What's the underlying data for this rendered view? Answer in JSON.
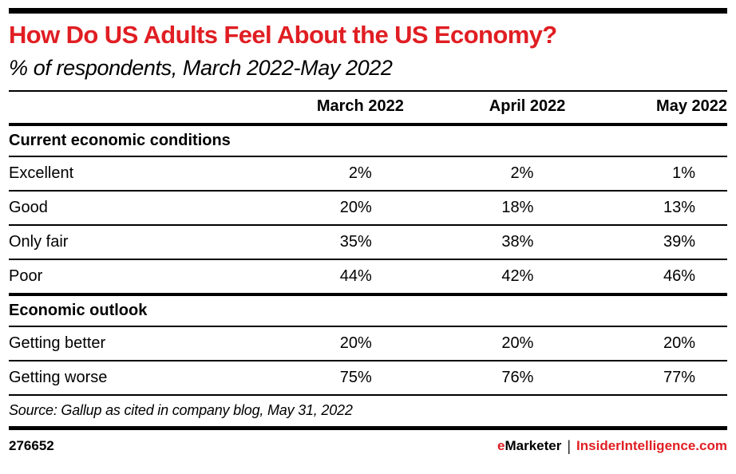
{
  "header": {
    "title": "How Do US Adults Feel About the US Economy?",
    "subtitle": "% of respondents, March 2022-May 2022"
  },
  "table": {
    "columns": [
      "March 2022",
      "April 2022",
      "May 2022"
    ],
    "sections": [
      {
        "label": "Current economic conditions",
        "rows": [
          {
            "label": "Excellent",
            "values": [
              "2%",
              "2%",
              "1%"
            ]
          },
          {
            "label": "Good",
            "values": [
              "20%",
              "18%",
              "13%"
            ]
          },
          {
            "label": "Only fair",
            "values": [
              "35%",
              "38%",
              "39%"
            ]
          },
          {
            "label": "Poor",
            "values": [
              "44%",
              "42%",
              "46%"
            ]
          }
        ]
      },
      {
        "label": "Economic outlook",
        "rows": [
          {
            "label": "Getting better",
            "values": [
              "20%",
              "20%",
              "20%"
            ]
          },
          {
            "label": "Getting worse",
            "values": [
              "75%",
              "76%",
              "77%"
            ]
          }
        ]
      }
    ]
  },
  "source": "Source: Gallup as cited in company blog, May 31, 2022",
  "footer": {
    "chart_id": "276652",
    "brand_e": "e",
    "brand_rest": "Marketer",
    "separator": "|",
    "site": "InsiderIntelligence.com"
  },
  "colors": {
    "accent_red": "#e01e23",
    "text": "#000000",
    "rules": "#000000",
    "background": "#ffffff"
  },
  "chart_data": {
    "type": "table",
    "title": "How Do US Adults Feel About the US Economy?",
    "subtitle": "% of respondents, March 2022-May 2022",
    "unit": "%",
    "categories": [
      "March 2022",
      "April 2022",
      "May 2022"
    ],
    "sections": [
      {
        "name": "Current economic conditions",
        "series": [
          {
            "name": "Excellent",
            "values": [
              2,
              2,
              1
            ]
          },
          {
            "name": "Good",
            "values": [
              20,
              18,
              13
            ]
          },
          {
            "name": "Only fair",
            "values": [
              35,
              38,
              39
            ]
          },
          {
            "name": "Poor",
            "values": [
              44,
              42,
              46
            ]
          }
        ]
      },
      {
        "name": "Economic outlook",
        "series": [
          {
            "name": "Getting better",
            "values": [
              20,
              20,
              20
            ]
          },
          {
            "name": "Getting worse",
            "values": [
              75,
              76,
              77
            ]
          }
        ]
      }
    ],
    "source": "Source: Gallup as cited in company blog, May 31, 2022",
    "chart_id": "276652"
  }
}
